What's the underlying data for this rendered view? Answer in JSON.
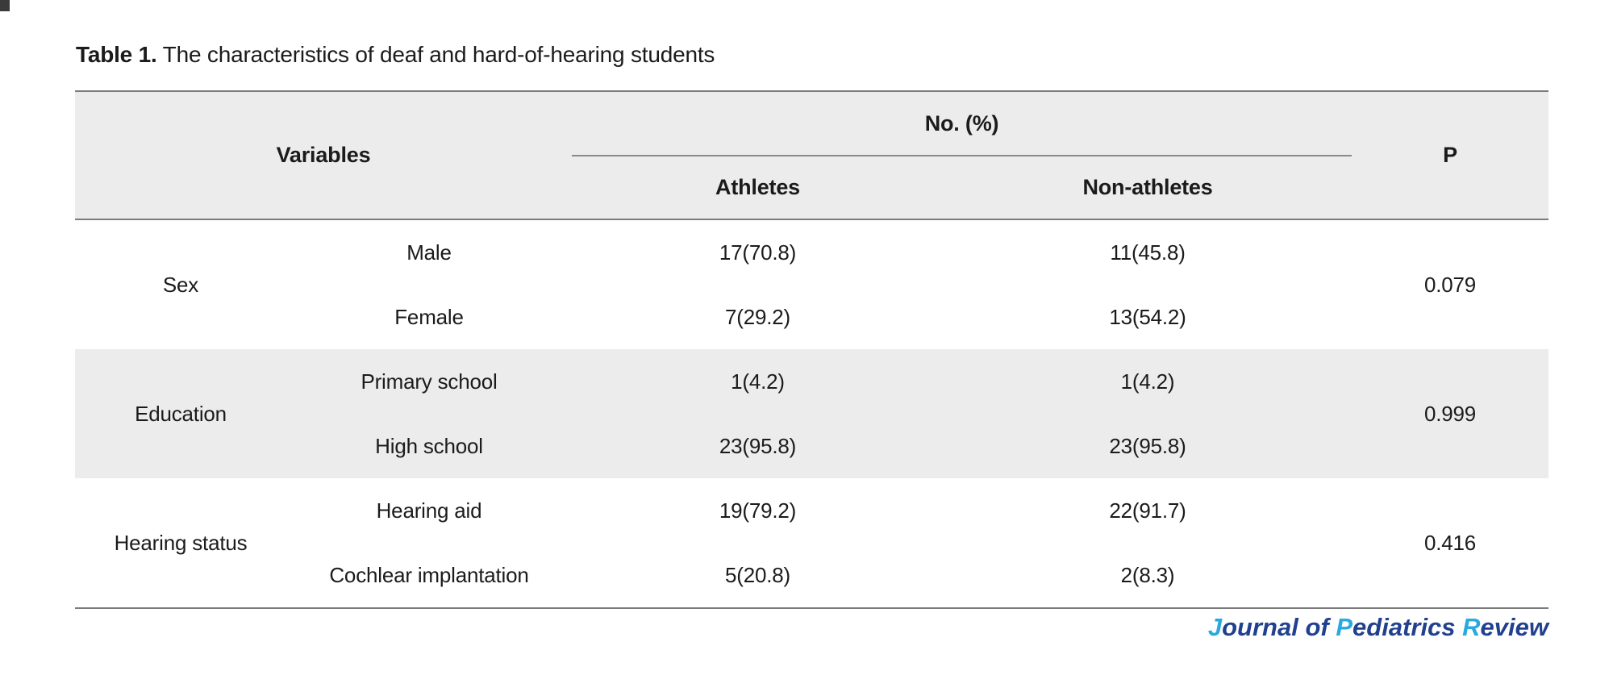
{
  "caption": {
    "label": "Table 1.",
    "text": "The characteristics of deaf and hard-of-hearing students"
  },
  "table": {
    "header": {
      "variables": "Variables",
      "no_pct": "No. (%)",
      "athletes": "Athletes",
      "non_athletes": "Non-athletes",
      "p": "P"
    },
    "groups": [
      {
        "variable": "Sex",
        "p": "0.079",
        "rows": [
          {
            "level": "Male",
            "athletes": "17(70.8)",
            "non_athletes": "11(45.8)"
          },
          {
            "level": "Female",
            "athletes": "7(29.2)",
            "non_athletes": "13(54.2)"
          }
        ]
      },
      {
        "variable": "Education",
        "p": "0.999",
        "rows": [
          {
            "level": "Primary school",
            "athletes": "1(4.2)",
            "non_athletes": "1(4.2)"
          },
          {
            "level": "High school",
            "athletes": "23(95.8)",
            "non_athletes": "23(95.8)"
          }
        ]
      },
      {
        "variable": "Hearing status",
        "p": "0.416",
        "rows": [
          {
            "level": "Hearing aid",
            "athletes": "19(79.2)",
            "non_athletes": "22(91.7)"
          },
          {
            "level": "Cochlear implantation",
            "athletes": "5(20.8)",
            "non_athletes": "2(8.3)"
          }
        ]
      }
    ]
  },
  "footer": {
    "parts": [
      {
        "t": "J"
      },
      {
        "t": "ournal of "
      },
      {
        "t": "P"
      },
      {
        "t": "ediatrics "
      },
      {
        "t": "R"
      },
      {
        "t": "eview"
      }
    ]
  },
  "colors": {
    "accent_blue": "#29a9e0",
    "brand_navy": "#21418f",
    "header_shade": "#ececec",
    "rule_gray": "#7b7b7b"
  }
}
